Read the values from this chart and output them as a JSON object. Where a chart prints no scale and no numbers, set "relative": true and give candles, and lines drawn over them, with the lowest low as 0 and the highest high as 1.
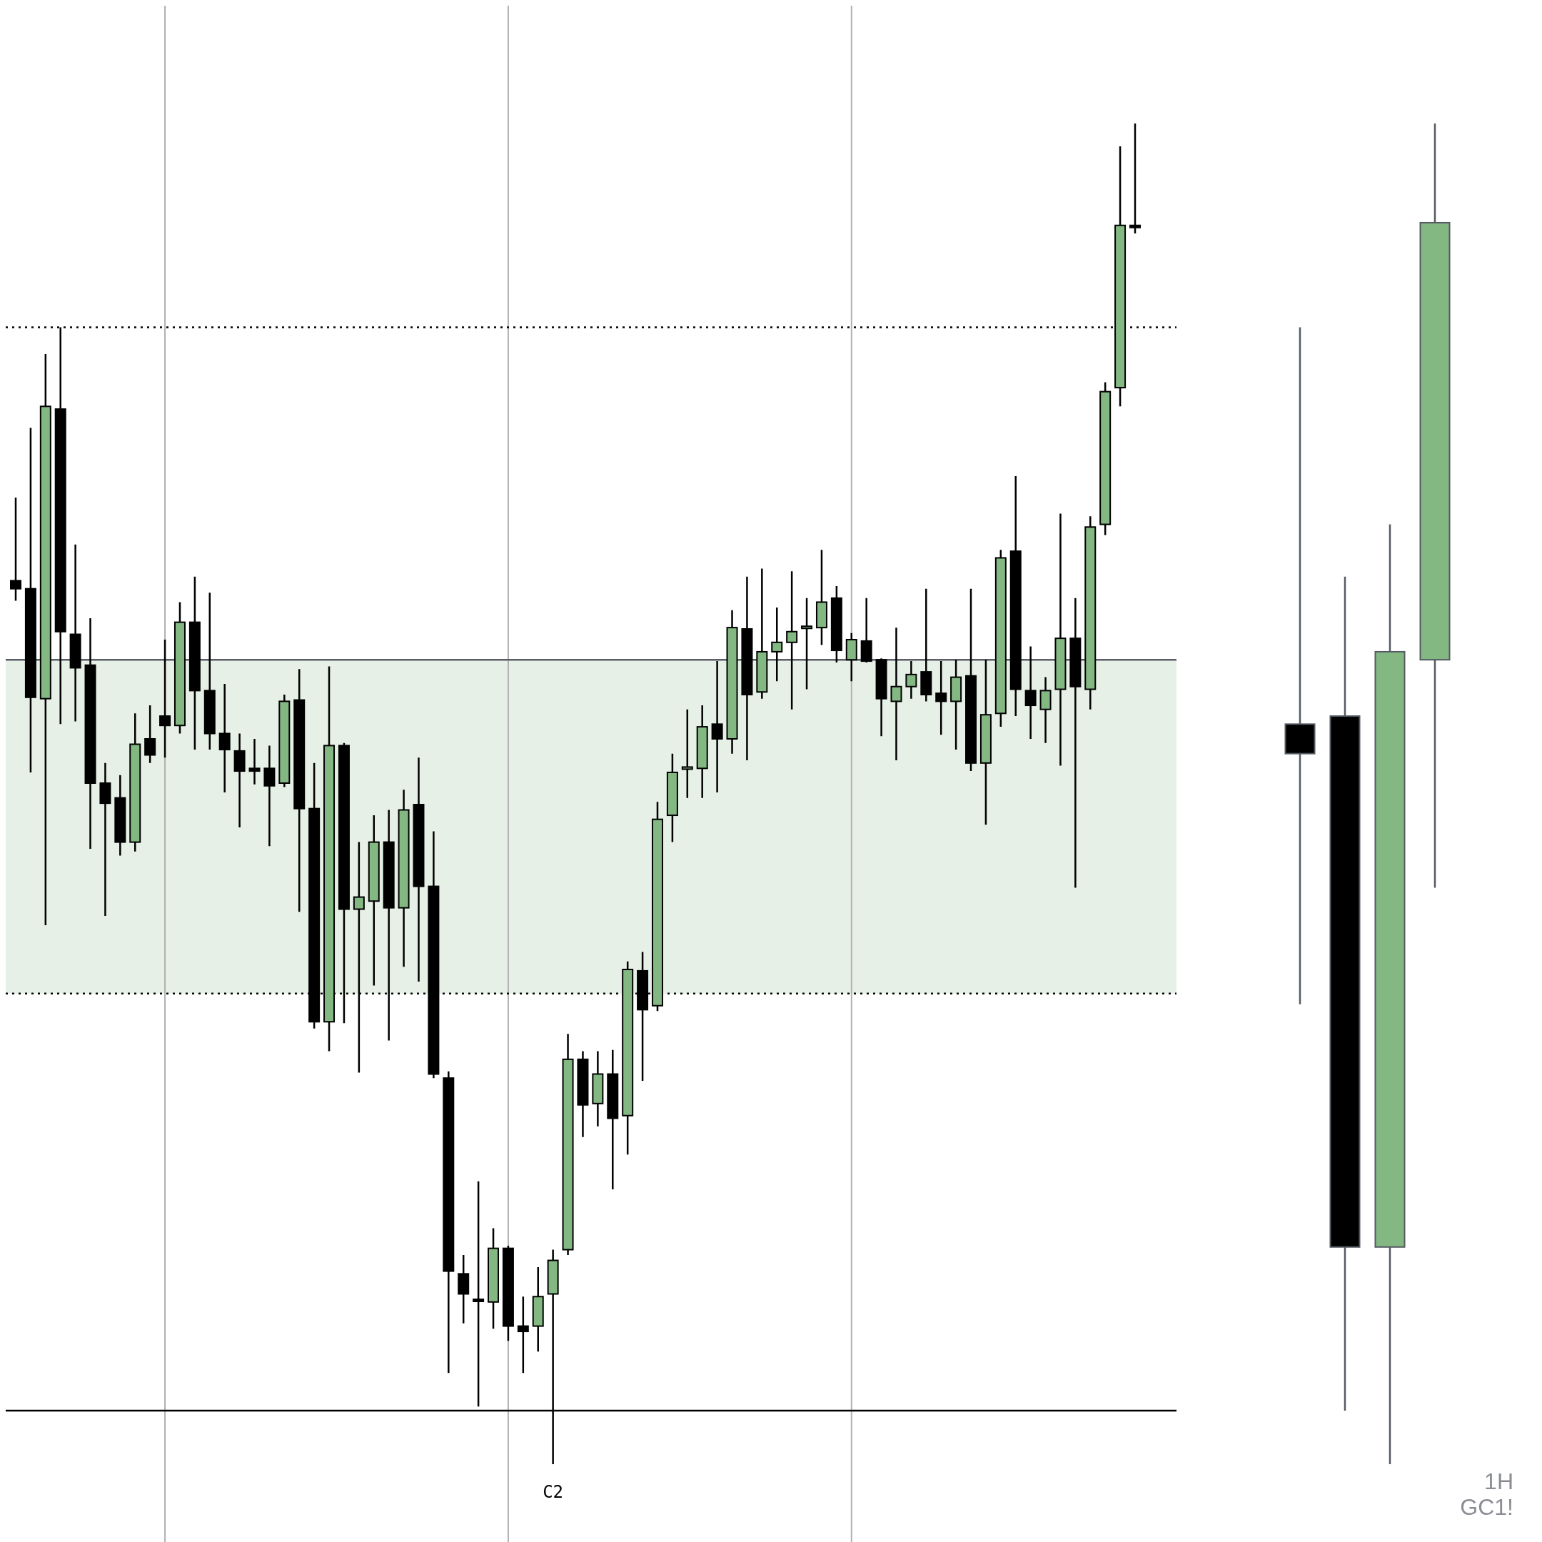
{
  "chart_data": [
    {
      "type": "candlestick",
      "relative": true,
      "grid": "x",
      "categories": [
        null,
        null,
        null,
        null,
        null,
        null,
        null,
        null,
        null,
        null,
        null,
        null,
        null,
        null,
        null,
        null,
        null,
        null,
        null,
        null,
        null,
        null,
        null,
        null,
        null,
        null,
        null,
        null,
        null,
        null,
        null,
        null,
        null,
        null,
        null,
        null,
        "C2",
        null,
        null,
        null,
        null,
        null,
        null,
        null,
        null,
        null,
        null,
        null,
        null,
        null,
        null,
        null,
        null,
        null,
        null,
        null,
        null,
        null,
        null,
        null,
        null,
        null,
        null,
        null,
        null,
        null,
        null,
        null,
        null,
        null,
        null,
        null,
        null,
        null,
        null,
        null
      ],
      "ohlc": [
        [
          0.659,
          0.721,
          0.644,
          0.653
        ],
        [
          0.653,
          0.773,
          0.516,
          0.572
        ],
        [
          0.571,
          0.828,
          0.402,
          0.789
        ],
        [
          0.787,
          0.848,
          0.552,
          0.621
        ],
        [
          0.619,
          0.686,
          0.554,
          0.594
        ],
        [
          0.596,
          0.631,
          0.459,
          0.508
        ],
        [
          0.508,
          0.523,
          0.409,
          0.493
        ],
        [
          0.497,
          0.514,
          0.454,
          0.464
        ],
        [
          0.464,
          0.56,
          0.457,
          0.537
        ],
        [
          0.541,
          0.566,
          0.523,
          0.529
        ],
        [
          0.558,
          0.615,
          0.527,
          0.551
        ],
        [
          0.551,
          0.643,
          0.545,
          0.628
        ],
        [
          0.628,
          0.662,
          0.533,
          0.577
        ],
        [
          0.577,
          0.65,
          0.533,
          0.545
        ],
        [
          0.545,
          0.582,
          0.501,
          0.533
        ],
        [
          0.532,
          0.545,
          0.475,
          0.517
        ],
        [
          0.519,
          0.541,
          0.507,
          0.517
        ],
        [
          0.519,
          0.536,
          0.461,
          0.506
        ],
        [
          0.508,
          0.574,
          0.505,
          0.569
        ],
        [
          0.57,
          0.593,
          0.412,
          0.489
        ],
        [
          0.489,
          0.523,
          0.325,
          0.33
        ],
        [
          0.33,
          0.595,
          0.308,
          0.536
        ],
        [
          0.536,
          0.538,
          0.329,
          0.414
        ],
        [
          0.414,
          0.464,
          0.292,
          0.423
        ],
        [
          0.42,
          0.484,
          0.357,
          0.464
        ],
        [
          0.464,
          0.488,
          0.316,
          0.415
        ],
        [
          0.415,
          0.503,
          0.371,
          0.488
        ],
        [
          0.492,
          0.527,
          0.36,
          0.431
        ],
        [
          0.431,
          0.472,
          0.288,
          0.291
        ],
        [
          0.288,
          0.293,
          0.068,
          0.144
        ],
        [
          0.142,
          0.156,
          0.105,
          0.127
        ],
        [
          0.123,
          0.211,
          0.043,
          0.122
        ],
        [
          0.121,
          0.176,
          0.101,
          0.161
        ],
        [
          0.161,
          0.163,
          0.092,
          0.103
        ],
        [
          0.103,
          0.125,
          0.068,
          0.099
        ],
        [
          0.103,
          0.147,
          0.084,
          0.125
        ],
        [
          0.127,
          0.16,
          0,
          0.152
        ],
        [
          0.16,
          0.321,
          0.156,
          0.302
        ],
        [
          0.302,
          0.308,
          0.244,
          0.268
        ],
        [
          0.269,
          0.308,
          0.252,
          0.291
        ],
        [
          0.291,
          0.309,
          0.205,
          0.258
        ],
        [
          0.26,
          0.375,
          0.231,
          0.369
        ],
        [
          0.368,
          0.382,
          0.286,
          0.339
        ],
        [
          0.342,
          0.494,
          0.338,
          0.481
        ],
        [
          0.484,
          0.53,
          0.464,
          0.516
        ],
        [
          0.519,
          0.563,
          0.497,
          0.52
        ],
        [
          0.519,
          0.566,
          0.497,
          0.55
        ],
        [
          0.552,
          0.599,
          0.501,
          0.541
        ],
        [
          0.541,
          0.637,
          0.53,
          0.624
        ],
        [
          0.623,
          0.662,
          0.525,
          0.574
        ],
        [
          0.576,
          0.668,
          0.571,
          0.606
        ],
        [
          0.606,
          0.639,
          0.584,
          0.613
        ],
        [
          0.613,
          0.666,
          0.563,
          0.621
        ],
        [
          0.624,
          0.646,
          0.578,
          0.625
        ],
        [
          0.624,
          0.682,
          0.611,
          0.643
        ],
        [
          0.646,
          0.655,
          0.598,
          0.607
        ],
        [
          0.6,
          0.62,
          0.584,
          0.615
        ],
        [
          0.614,
          0.646,
          0.598,
          0.599
        ],
        [
          0.6,
          0.601,
          0.543,
          0.571
        ],
        [
          0.569,
          0.624,
          0.525,
          0.58
        ],
        [
          0.58,
          0.599,
          0.571,
          0.589
        ],
        [
          0.591,
          0.653,
          0.569,
          0.574
        ],
        [
          0.575,
          0.599,
          0.544,
          0.569
        ],
        [
          0.569,
          0.6,
          0.533,
          0.587
        ],
        [
          0.588,
          0.653,
          0.517,
          0.523
        ],
        [
          0.523,
          0.6,
          0.477,
          0.559
        ],
        [
          0.56,
          0.682,
          0.55,
          0.676
        ],
        [
          0.681,
          0.737,
          0.558,
          0.578
        ],
        [
          0.577,
          0.61,
          0.541,
          0.566
        ],
        [
          0.563,
          0.587,
          0.538,
          0.577
        ],
        [
          0.578,
          0.709,
          0.521,
          0.616
        ],
        [
          0.616,
          0.646,
          0.43,
          0.58
        ],
        [
          0.578,
          0.707,
          0.563,
          0.699
        ],
        [
          0.701,
          0.807,
          0.693,
          0.8
        ],
        [
          0.803,
          0.983,
          0.789,
          0.924
        ],
        [
          0.924,
          1,
          0.918,
          0.923
        ]
      ],
      "colors": [
        "#000000",
        "#000000",
        "#83b883",
        "#000000",
        "#000000",
        "#000000",
        "#000000",
        "#000000",
        "#83b883",
        "#000000",
        "#000000",
        "#83b883",
        "#000000",
        "#000000",
        "#000000",
        "#000000",
        "#000000",
        "#000000",
        "#83b883",
        "#000000",
        "#000000",
        "#83b883",
        "#000000",
        "#83b883",
        "#83b883",
        "#000000",
        "#83b883",
        "#000000",
        "#000000",
        "#000000",
        "#000000",
        "#000000",
        "#83b883",
        "#000000",
        "#000000",
        "#83b883",
        "#83b883",
        "#83b883",
        "#000000",
        "#83b883",
        "#000000",
        "#83b883",
        "#000000",
        "#83b883",
        "#83b883",
        "#83b883",
        "#83b883",
        "#000000",
        "#83b883",
        "#000000",
        "#83b883",
        "#83b883",
        "#83b883",
        "#83b883",
        "#83b883",
        "#000000",
        "#83b883",
        "#000000",
        "#000000",
        "#83b883",
        "#83b883",
        "#000000",
        "#000000",
        "#83b883",
        "#000000",
        "#83b883",
        "#83b883",
        "#000000",
        "#000000",
        "#83b883",
        "#83b883",
        "#000000",
        "#83b883",
        "#83b883",
        "#83b883",
        "#000000"
      ],
      "ref_lines": [
        {
          "axis": "y",
          "value": 0.848,
          "line_style": "dotted",
          "color": "#000000"
        },
        {
          "axis": "y",
          "value": 0.6,
          "line_style": "solid",
          "color": "#5a5e66"
        },
        {
          "axis": "y",
          "value": 0.351,
          "line_style": "dotted",
          "color": "#000000"
        },
        {
          "axis": "y",
          "value": 0.04,
          "line_style": "solid",
          "color": "#000000"
        }
      ],
      "bands": [
        {
          "axis": "y",
          "from": 0.351,
          "to": 0.6,
          "color": "#e6f0e6"
        }
      ]
    },
    {
      "type": "candlestick",
      "relative": true,
      "categories": [
        null,
        null,
        null,
        null
      ],
      "ohlc": [
        [
          0.552,
          0.848,
          0.343,
          0.53
        ],
        [
          0.558,
          0.662,
          0.04,
          0.162
        ],
        [
          0.162,
          0.701,
          0,
          0.606
        ],
        [
          0.6,
          1,
          0.43,
          0.926
        ]
      ],
      "colors": [
        "#000000",
        "#000000",
        "#83b883",
        "#83b883"
      ],
      "annotations": [
        "1H",
        "GC1!"
      ]
    }
  ]
}
